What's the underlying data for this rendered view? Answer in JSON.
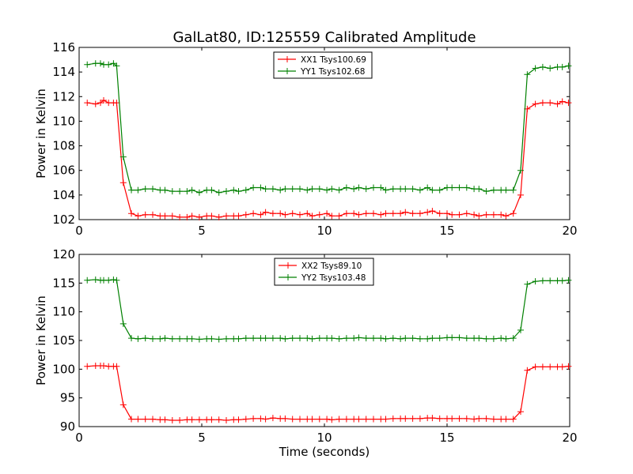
{
  "title": "GalLat80, ID:125559 Calibrated Amplitude",
  "colors": {
    "xx": "#ff0000",
    "yy": "#008000"
  },
  "chart_data": [
    {
      "type": "line",
      "title": "GalLat80, ID:125559 Calibrated Amplitude",
      "xlabel": "",
      "ylabel": "Power in Kelvin",
      "xlim": [
        0,
        20
      ],
      "ylim": [
        102,
        116
      ],
      "xticks": [
        "0",
        "5",
        "10",
        "15",
        "20"
      ],
      "yticks": [
        "102",
        "104",
        "106",
        "108",
        "110",
        "112",
        "114",
        "116"
      ],
      "grid": false,
      "legend": "top-center",
      "x": [
        0.33,
        0.67,
        0.87,
        1.0,
        1.2,
        1.4,
        1.53,
        1.8,
        2.13,
        2.4,
        2.7,
        3.0,
        3.3,
        3.5,
        3.8,
        4.1,
        4.4,
        4.6,
        4.9,
        5.2,
        5.4,
        5.7,
        6.0,
        6.3,
        6.5,
        6.8,
        7.1,
        7.4,
        7.6,
        7.9,
        8.2,
        8.4,
        8.7,
        9.0,
        9.3,
        9.5,
        9.8,
        10.1,
        10.3,
        10.6,
        10.9,
        11.2,
        11.4,
        11.7,
        12.0,
        12.3,
        12.5,
        12.8,
        13.1,
        13.3,
        13.6,
        13.9,
        14.2,
        14.4,
        14.7,
        15.0,
        15.2,
        15.5,
        15.8,
        16.1,
        16.3,
        16.6,
        16.9,
        17.2,
        17.4,
        17.7,
        18.0,
        18.27,
        18.6,
        18.9,
        19.2,
        19.5,
        19.7,
        19.95
      ],
      "series": [
        {
          "name": "XX1 Tsys100.69",
          "color": "#ff0000",
          "values": [
            111.5,
            111.4,
            111.5,
            111.7,
            111.5,
            111.5,
            111.5,
            105.0,
            102.5,
            102.3,
            102.4,
            102.4,
            102.3,
            102.3,
            102.3,
            102.2,
            102.2,
            102.3,
            102.2,
            102.3,
            102.3,
            102.2,
            102.3,
            102.3,
            102.3,
            102.4,
            102.5,
            102.4,
            102.6,
            102.5,
            102.5,
            102.4,
            102.5,
            102.4,
            102.5,
            102.3,
            102.4,
            102.5,
            102.3,
            102.3,
            102.5,
            102.5,
            102.4,
            102.5,
            102.5,
            102.4,
            102.5,
            102.5,
            102.5,
            102.6,
            102.5,
            102.5,
            102.6,
            102.7,
            102.5,
            102.5,
            102.4,
            102.4,
            102.5,
            102.4,
            102.3,
            102.4,
            102.4,
            102.4,
            102.3,
            102.5,
            104.0,
            111.0,
            111.4,
            111.5,
            111.5,
            111.4,
            111.6,
            111.5
          ]
        },
        {
          "name": "YY1 Tsys102.68",
          "color": "#008000",
          "values": [
            114.6,
            114.7,
            114.7,
            114.6,
            114.6,
            114.7,
            114.5,
            107.1,
            104.4,
            104.4,
            104.5,
            104.5,
            104.4,
            104.4,
            104.3,
            104.3,
            104.3,
            104.4,
            104.2,
            104.4,
            104.4,
            104.2,
            104.3,
            104.4,
            104.3,
            104.4,
            104.6,
            104.6,
            104.5,
            104.5,
            104.4,
            104.5,
            104.5,
            104.5,
            104.4,
            104.5,
            104.5,
            104.4,
            104.5,
            104.4,
            104.6,
            104.5,
            104.6,
            104.5,
            104.6,
            104.6,
            104.4,
            104.5,
            104.5,
            104.5,
            104.5,
            104.4,
            104.6,
            104.4,
            104.4,
            104.6,
            104.6,
            104.6,
            104.6,
            104.5,
            104.5,
            104.3,
            104.4,
            104.4,
            104.4,
            104.4,
            106.0,
            113.8,
            114.3,
            114.4,
            114.3,
            114.4,
            114.4,
            114.5
          ]
        }
      ]
    },
    {
      "type": "line",
      "title": "",
      "xlabel": "Time (seconds)",
      "ylabel": "Power in Kelvin",
      "xlim": [
        0,
        20
      ],
      "ylim": [
        90,
        120
      ],
      "xticks": [
        "0",
        "5",
        "10",
        "15",
        "20"
      ],
      "yticks": [
        "90",
        "95",
        "100",
        "105",
        "110",
        "115",
        "120"
      ],
      "grid": false,
      "legend": "top-center",
      "x": [
        0.33,
        0.67,
        0.87,
        1.0,
        1.2,
        1.4,
        1.53,
        1.8,
        2.13,
        2.4,
        2.7,
        3.0,
        3.3,
        3.5,
        3.8,
        4.1,
        4.4,
        4.6,
        4.9,
        5.2,
        5.4,
        5.7,
        6.0,
        6.3,
        6.5,
        6.8,
        7.1,
        7.4,
        7.6,
        7.9,
        8.2,
        8.4,
        8.7,
        9.0,
        9.3,
        9.5,
        9.8,
        10.1,
        10.3,
        10.6,
        10.9,
        11.2,
        11.4,
        11.7,
        12.0,
        12.3,
        12.5,
        12.8,
        13.1,
        13.3,
        13.6,
        13.9,
        14.2,
        14.4,
        14.7,
        15.0,
        15.2,
        15.5,
        15.8,
        16.1,
        16.3,
        16.6,
        16.9,
        17.2,
        17.4,
        17.7,
        18.0,
        18.27,
        18.6,
        18.9,
        19.2,
        19.5,
        19.7,
        19.95
      ],
      "series": [
        {
          "name": "XX2 Tsys89.10",
          "color": "#ff0000",
          "values": [
            100.5,
            100.6,
            100.6,
            100.6,
            100.5,
            100.5,
            100.5,
            93.8,
            91.3,
            91.3,
            91.3,
            91.3,
            91.2,
            91.2,
            91.1,
            91.1,
            91.2,
            91.2,
            91.2,
            91.2,
            91.2,
            91.2,
            91.1,
            91.2,
            91.2,
            91.3,
            91.4,
            91.4,
            91.3,
            91.5,
            91.4,
            91.4,
            91.3,
            91.3,
            91.3,
            91.3,
            91.3,
            91.3,
            91.2,
            91.3,
            91.3,
            91.3,
            91.3,
            91.3,
            91.3,
            91.3,
            91.3,
            91.4,
            91.4,
            91.4,
            91.4,
            91.4,
            91.5,
            91.5,
            91.4,
            91.4,
            91.4,
            91.4,
            91.4,
            91.3,
            91.4,
            91.4,
            91.3,
            91.3,
            91.3,
            91.3,
            92.6,
            99.8,
            100.4,
            100.4,
            100.4,
            100.4,
            100.4,
            100.5
          ]
        },
        {
          "name": "YY2 Tsys103.48",
          "color": "#008000",
          "values": [
            115.5,
            115.6,
            115.5,
            115.5,
            115.5,
            115.6,
            115.5,
            107.9,
            105.4,
            105.3,
            105.4,
            105.3,
            105.3,
            105.4,
            105.3,
            105.3,
            105.3,
            105.3,
            105.2,
            105.3,
            105.3,
            105.2,
            105.3,
            105.3,
            105.3,
            105.4,
            105.4,
            105.4,
            105.4,
            105.4,
            105.4,
            105.3,
            105.4,
            105.4,
            105.4,
            105.3,
            105.4,
            105.4,
            105.4,
            105.3,
            105.4,
            105.4,
            105.5,
            105.4,
            105.4,
            105.4,
            105.3,
            105.4,
            105.3,
            105.4,
            105.4,
            105.3,
            105.3,
            105.4,
            105.4,
            105.5,
            105.5,
            105.5,
            105.4,
            105.4,
            105.4,
            105.3,
            105.3,
            105.4,
            105.3,
            105.4,
            106.8,
            114.8,
            115.3,
            115.4,
            115.4,
            115.4,
            115.4,
            115.5
          ]
        }
      ]
    }
  ]
}
